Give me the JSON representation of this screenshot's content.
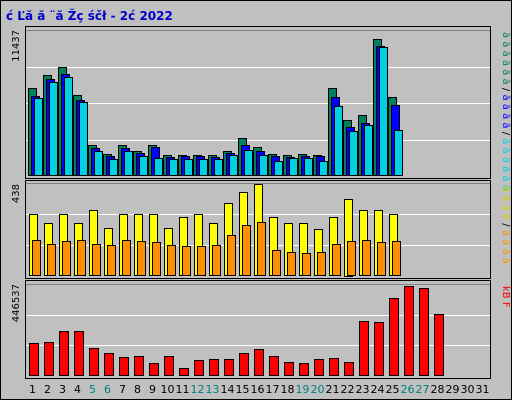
{
  "title": "ć Ľă  ă ¨ă Žç śčł  - 2ć   2022",
  "colors": {
    "frame": "#c0c0c0",
    "panel": "#c0c0c0",
    "grid": "#ffffff",
    "title_text": "#0000cc",
    "day_green": "#008080",
    "day_black": "#000000",
    "hits": "#008060",
    "files": "#0000ff",
    "pages": "#00d0e0",
    "visits": "#ffff00",
    "sites": "#ff9000",
    "kbytes": "#ff0000"
  },
  "side_labels": {
    "top": [
      {
        "text": "ă ă",
        "color": "#008060"
      },
      {
        "text": "ă ă",
        "color": "#008060"
      },
      {
        "text": "ă ă",
        "color": "#008060"
      },
      {
        "text": "/",
        "color": "#000000"
      },
      {
        "text": "ă ă",
        "color": "#0000ff"
      },
      {
        "text": "ă ă",
        "color": "#0000ff"
      },
      {
        "text": "/",
        "color": "#000000"
      },
      {
        "text": "ă ă",
        "color": "#00d0e0"
      },
      {
        "text": "ă ă",
        "color": "#00d0e0"
      },
      {
        "text": "ă ă",
        "color": "#00d0e0"
      }
    ],
    "middle": [
      {
        "text": "ă ă",
        "color": "#d0d000"
      },
      {
        "text": "ă ă",
        "color": "#d0d000"
      },
      {
        "text": "/",
        "color": "#000000"
      },
      {
        "text": "ă ă",
        "color": "#ff9000"
      },
      {
        "text": "ă ă",
        "color": "#ff9000"
      }
    ],
    "bottom": [
      {
        "text": "kB F",
        "color": "#ff0000"
      }
    ]
  },
  "chart_data": [
    {
      "type": "bar",
      "panel": "top",
      "ymax_label": "11437",
      "ylim": [
        0,
        11437
      ],
      "series": [
        {
          "values": [
            6920,
            7940,
            8500,
            6360,
            2460,
            1740,
            2460,
            1990,
            2460,
            1630,
            1630,
            1630,
            1630,
            1990,
            2960,
            2270,
            1740,
            1630,
            1740,
            1630,
            6930,
            4370,
            4780,
            10700,
            6160
          ]
        },
        {
          "values": [
            6270,
            7570,
            7970,
            5960,
            2180,
            1600,
            2180,
            1780,
            2260,
            1520,
            1540,
            1540,
            1520,
            1780,
            2460,
            1940,
            1580,
            1520,
            1600,
            1540,
            6200,
            3860,
            4190,
            10200,
            5560
          ]
        },
        {
          "values": [
            6100,
            7350,
            7750,
            5800,
            1940,
            1300,
            1940,
            1540,
            1420,
            1300,
            1300,
            1300,
            1300,
            1640,
            2070,
            1650,
            1210,
            1380,
            1380,
            1200,
            5460,
            3500,
            3990,
            10070,
            3620
          ]
        }
      ]
    },
    {
      "type": "bar",
      "panel": "middle",
      "ymax_label": "438",
      "ylim": [
        0,
        438
      ],
      "series": [
        {
          "values": [
            294,
            248,
            294,
            248,
            313,
            227,
            294,
            294,
            294,
            227,
            279,
            294,
            248,
            344,
            394,
            435,
            279,
            248,
            248,
            223,
            279,
            365,
            313,
            313,
            294
          ]
        },
        {
          "values": [
            168,
            153,
            163,
            168,
            153,
            148,
            168,
            163,
            158,
            148,
            143,
            143,
            148,
            194,
            240,
            255,
            122,
            112,
            107,
            112,
            153,
            163,
            168,
            158,
            163
          ]
        }
      ]
    },
    {
      "type": "bar",
      "panel": "bottom",
      "ymax_label": "446537",
      "ylim": [
        0,
        446537
      ],
      "series": [
        {
          "values": [
            160000,
            163000,
            217000,
            219000,
            137000,
            110000,
            90000,
            97000,
            62000,
            97000,
            40000,
            79000,
            83000,
            84000,
            114000,
            133000,
            97000,
            68000,
            64000,
            83000,
            87000,
            70000,
            266000,
            264000,
            378000,
            436000,
            429000,
            302000
          ]
        }
      ]
    }
  ],
  "x_axis": {
    "days": [
      {
        "label": "1",
        "color": "#000000"
      },
      {
        "label": "2",
        "color": "#000000"
      },
      {
        "label": "3",
        "color": "#000000"
      },
      {
        "label": "4",
        "color": "#000000"
      },
      {
        "label": "5",
        "color": "#008080"
      },
      {
        "label": "6",
        "color": "#008080"
      },
      {
        "label": "7",
        "color": "#000000"
      },
      {
        "label": "8",
        "color": "#000000"
      },
      {
        "label": "9",
        "color": "#000000"
      },
      {
        "label": "10",
        "color": "#000000"
      },
      {
        "label": "11",
        "color": "#000000"
      },
      {
        "label": "12",
        "color": "#008080"
      },
      {
        "label": "13",
        "color": "#008080"
      },
      {
        "label": "14",
        "color": "#000000"
      },
      {
        "label": "15",
        "color": "#000000"
      },
      {
        "label": "16",
        "color": "#000000"
      },
      {
        "label": "17",
        "color": "#000000"
      },
      {
        "label": "18",
        "color": "#000000"
      },
      {
        "label": "19",
        "color": "#008080"
      },
      {
        "label": "20",
        "color": "#008080"
      },
      {
        "label": "21",
        "color": "#000000"
      },
      {
        "label": "22",
        "color": "#000000"
      },
      {
        "label": "23",
        "color": "#000000"
      },
      {
        "label": "24",
        "color": "#000000"
      },
      {
        "label": "25",
        "color": "#000000"
      },
      {
        "label": "26",
        "color": "#008080"
      },
      {
        "label": "27",
        "color": "#008080"
      },
      {
        "label": "28",
        "color": "#000000"
      },
      {
        "label": "29",
        "color": "#000000"
      },
      {
        "label": "30",
        "color": "#000000"
      },
      {
        "label": "31",
        "color": "#000000"
      }
    ]
  }
}
